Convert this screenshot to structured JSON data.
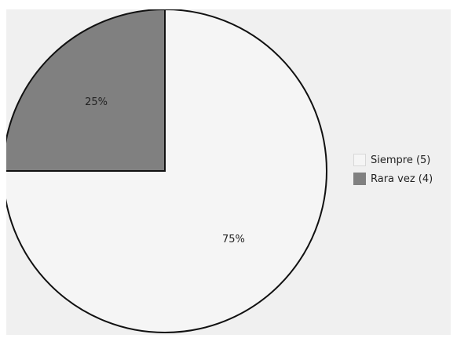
{
  "chart_data": {
    "type": "pie",
    "slices": [
      {
        "name": "Siempre (5)",
        "value": 75,
        "label": "75%",
        "color": "#f5f5f5"
      },
      {
        "name": "Rara vez (4)",
        "value": 25,
        "label": "25%",
        "color": "#808080"
      }
    ],
    "start_angle_deg": 0,
    "direction": "clockwise",
    "legend_position": "right",
    "border_color": "#111111"
  }
}
